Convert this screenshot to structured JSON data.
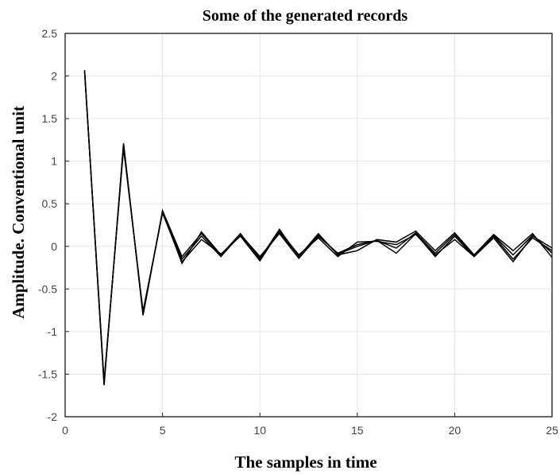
{
  "chart_data": {
    "type": "line",
    "title": "Some of the  generated records",
    "xlabel": "The samples in time",
    "ylabel": "Amplitude. Conventional unit",
    "xlim": [
      0,
      25
    ],
    "ylim": [
      -2,
      2.5
    ],
    "grid": true,
    "legend": "none",
    "x_ticks": [
      0,
      5,
      10,
      15,
      20,
      25
    ],
    "y_ticks": [
      -2,
      -1.5,
      -1,
      -0.5,
      0,
      0.5,
      1,
      1.5,
      2,
      2.5
    ],
    "line_color": "#000000",
    "x": [
      1,
      2,
      3,
      4,
      5,
      6,
      7,
      8,
      9,
      10,
      11,
      12,
      13,
      14,
      15,
      16,
      17,
      18,
      19,
      20,
      21,
      22,
      23,
      24,
      25
    ],
    "series": [
      {
        "values": [
          2.06,
          -1.62,
          1.2,
          -0.8,
          0.41,
          -0.2,
          0.17,
          -0.1,
          0.15,
          -0.15,
          0.2,
          -0.12,
          0.15,
          -0.1,
          -0.05,
          0.08,
          0.05,
          0.18,
          -0.05,
          0.16,
          -0.1,
          0.14,
          -0.05,
          0.15,
          -0.13
        ]
      },
      {
        "values": [
          2.05,
          -1.6,
          1.18,
          -0.78,
          0.4,
          -0.15,
          0.12,
          -0.12,
          0.14,
          -0.12,
          0.15,
          -0.14,
          0.12,
          -0.08,
          0.02,
          0.07,
          -0.08,
          0.15,
          -0.12,
          0.12,
          -0.12,
          0.12,
          -0.15,
          0.1,
          -0.05
        ]
      },
      {
        "values": [
          2.04,
          -1.58,
          1.15,
          -0.76,
          0.39,
          -0.18,
          0.08,
          -0.09,
          0.12,
          -0.17,
          0.18,
          -0.1,
          0.1,
          -0.12,
          0.05,
          0.06,
          0.02,
          0.14,
          -0.1,
          0.08,
          -0.12,
          0.1,
          -0.18,
          0.12,
          -0.02
        ]
      },
      {
        "values": [
          2.07,
          -1.63,
          1.21,
          -0.81,
          0.42,
          -0.12,
          0.15,
          -0.11,
          0.13,
          -0.14,
          0.16,
          -0.11,
          0.13,
          -0.09,
          0.0,
          0.07,
          -0.02,
          0.16,
          -0.08,
          0.14,
          -0.11,
          0.13,
          -0.1,
          0.13,
          -0.08
        ]
      }
    ]
  }
}
